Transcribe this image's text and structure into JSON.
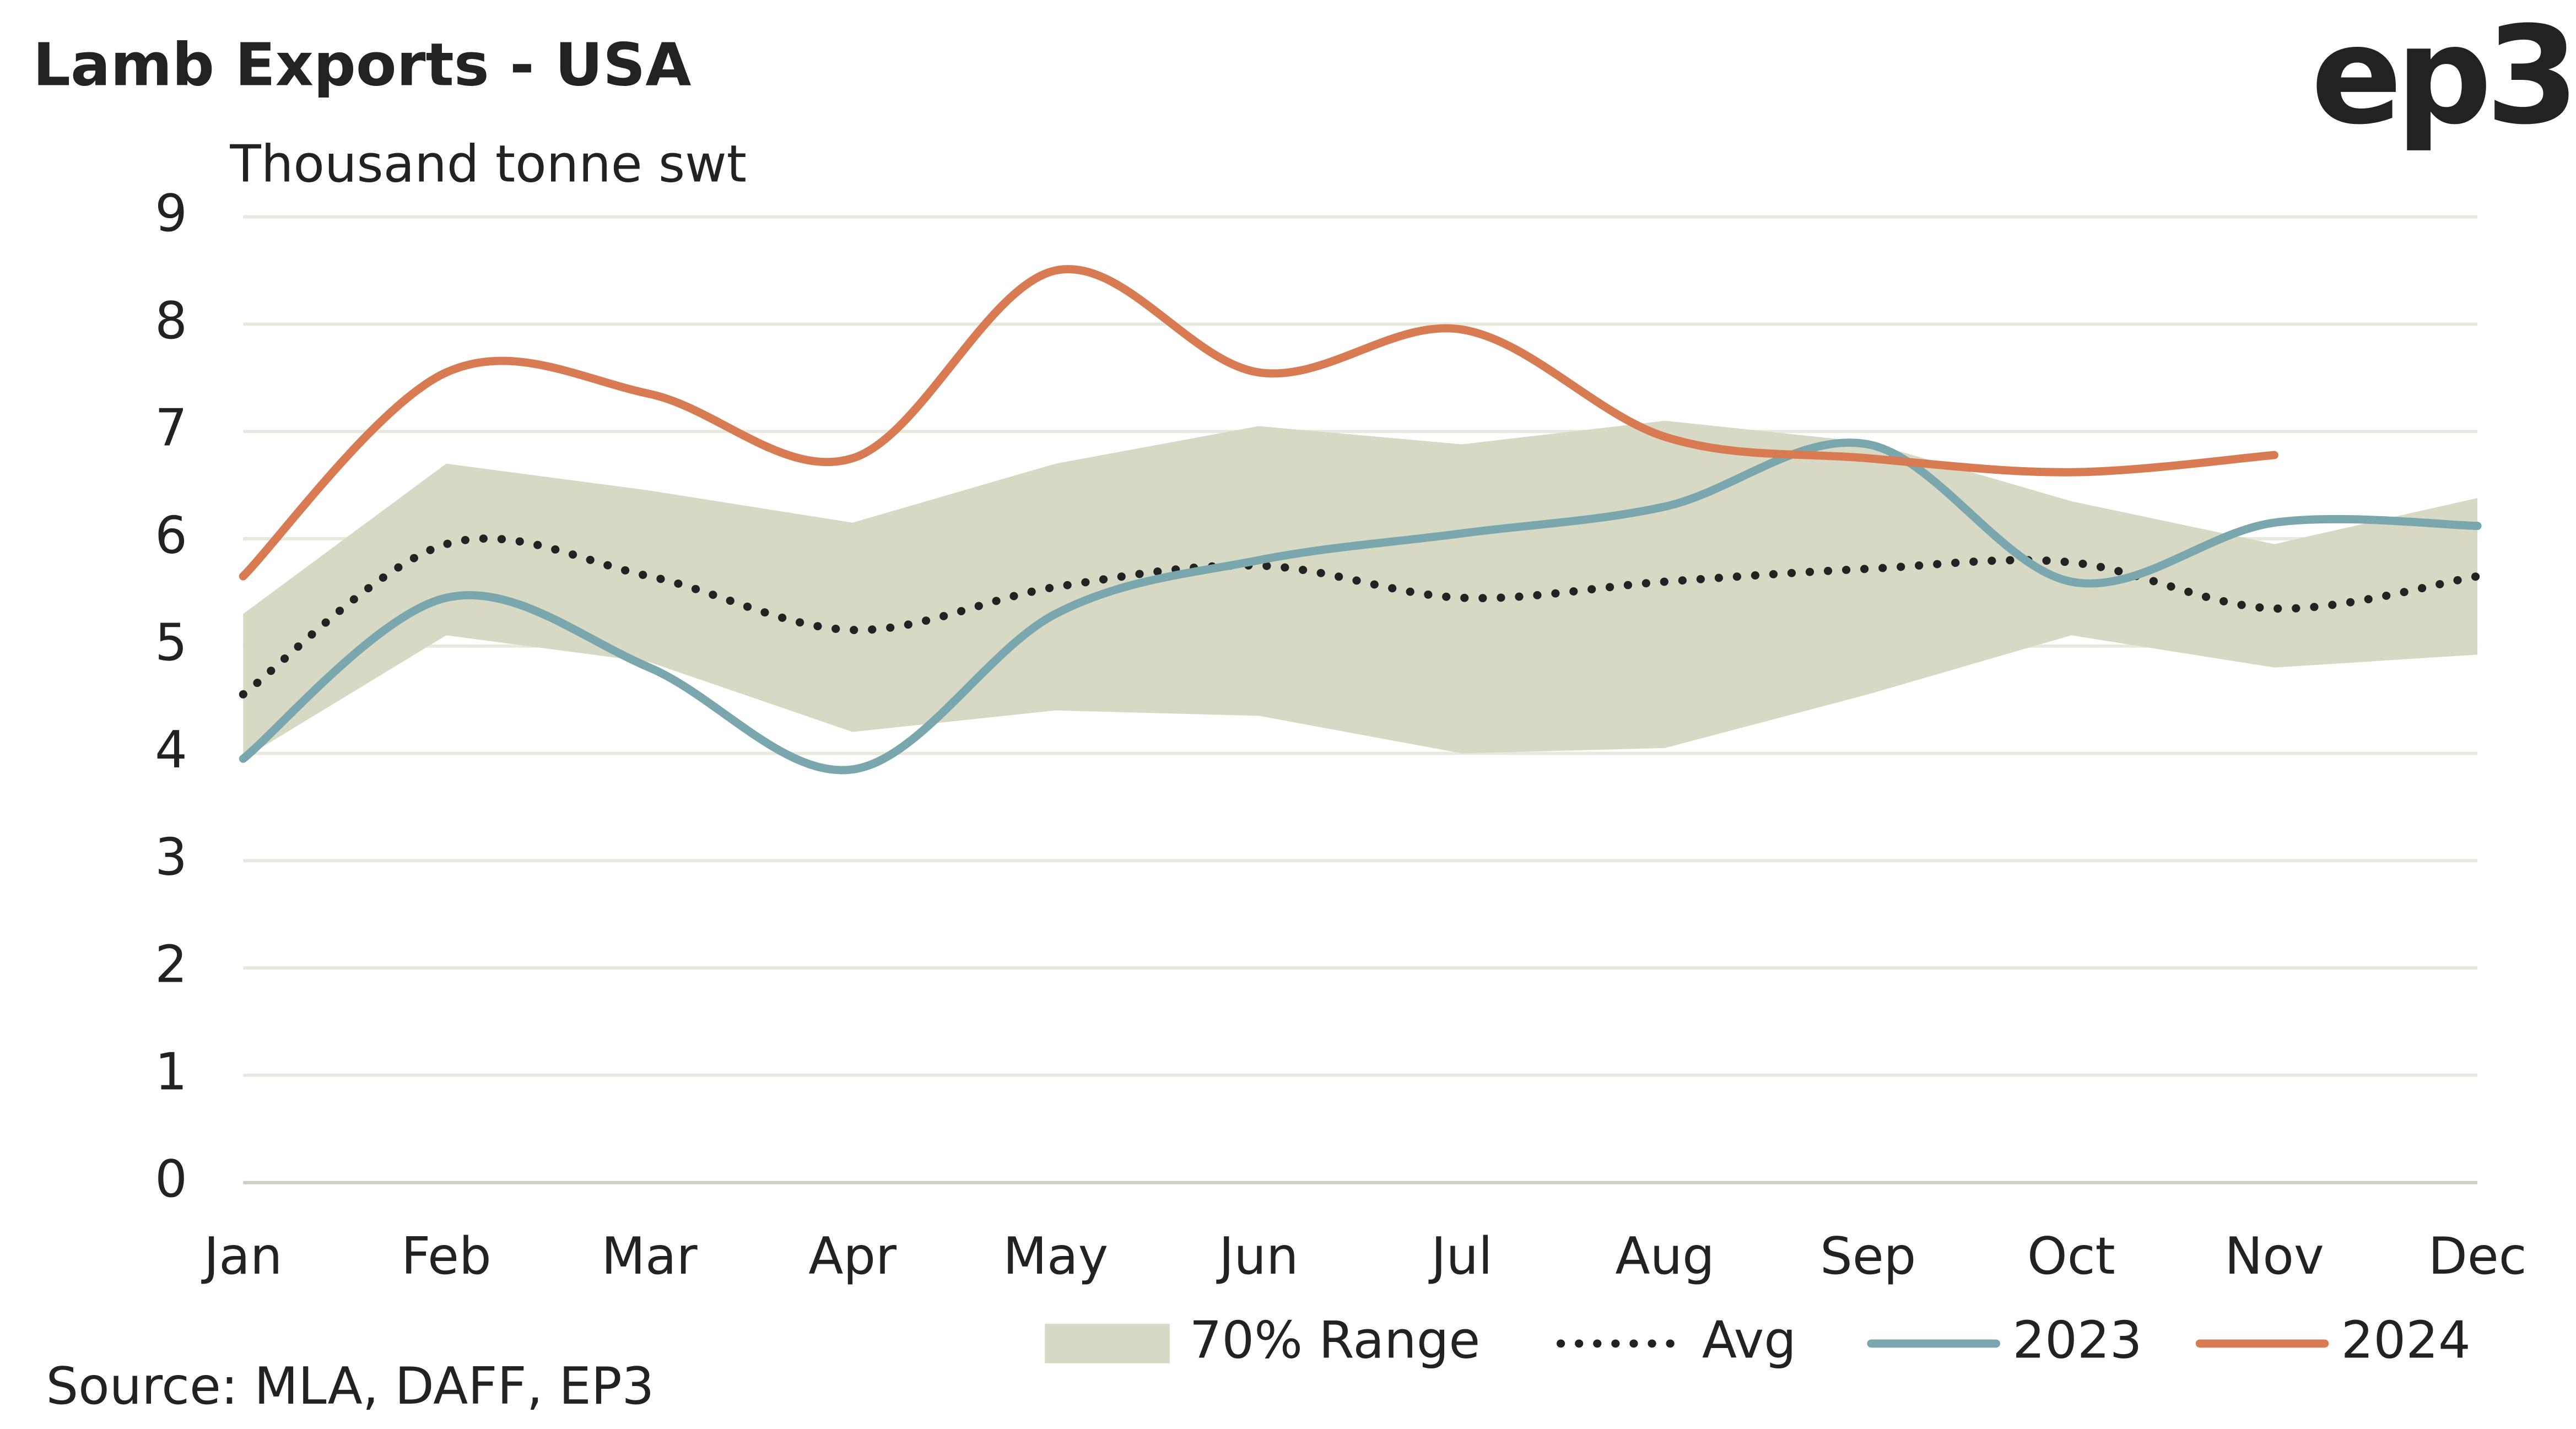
{
  "chart_data": {
    "type": "line",
    "title": "Lamb Exports - USA",
    "logo": "ep3",
    "y_label": "Thousand tonne swt",
    "source": "Source: MLA, DAFF, EP3",
    "categories": [
      "Jan",
      "Feb",
      "Mar",
      "Apr",
      "May",
      "Jun",
      "Jul",
      "Aug",
      "Sep",
      "Oct",
      "Nov",
      "Dec"
    ],
    "ylim": [
      0,
      9
    ],
    "yticks": [
      0,
      1,
      2,
      3,
      4,
      5,
      6,
      7,
      8,
      9
    ],
    "grid": true,
    "legend": "bottom",
    "series": [
      {
        "name": "70% Range",
        "type": "range",
        "color": "#d8d9c5",
        "low": [
          3.95,
          5.1,
          4.85,
          4.2,
          4.4,
          4.35,
          4.0,
          4.05,
          4.55,
          5.1,
          4.8,
          4.92
        ],
        "high": [
          5.3,
          6.7,
          6.45,
          6.15,
          6.7,
          7.05,
          6.88,
          7.1,
          6.9,
          6.35,
          5.95,
          6.38
        ]
      },
      {
        "name": "Avg",
        "style": "dotted",
        "color": "#222222",
        "values": [
          4.55,
          5.95,
          5.65,
          5.15,
          5.55,
          5.75,
          5.45,
          5.6,
          5.72,
          5.78,
          5.35,
          5.65
        ]
      },
      {
        "name": "2023",
        "color": "#79a7ad",
        "values": [
          3.95,
          5.45,
          4.8,
          3.85,
          5.3,
          5.8,
          6.05,
          6.3,
          6.88,
          5.6,
          6.15,
          6.12
        ]
      },
      {
        "name": "2024",
        "color": "#d97b52",
        "values": [
          5.65,
          7.55,
          7.35,
          6.75,
          8.5,
          7.55,
          7.95,
          6.95,
          6.75,
          6.62,
          6.78,
          null
        ]
      }
    ]
  }
}
